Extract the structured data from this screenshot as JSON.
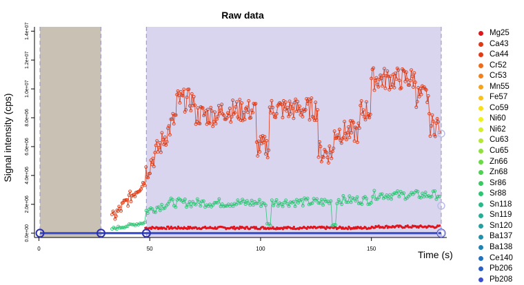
{
  "chart_data": {
    "type": "scatter",
    "title": "Raw data",
    "xlabel": "Time (s)",
    "ylabel": "Signal intensity (cps)",
    "xlim": [
      -2,
      184
    ],
    "ylim": [
      -300000,
      14300000
    ],
    "x_ticks": [
      0,
      50,
      100,
      150
    ],
    "x_tick_labels": [
      "0",
      "50",
      "100",
      "150"
    ],
    "y_ticks": [
      0,
      2000000,
      4000000,
      6000000,
      8000000,
      10000000,
      12000000,
      14000000
    ],
    "y_tick_labels": [
      "0.0e+00",
      "2.0e+06",
      "4.0e+06",
      "6.0e+06",
      "8.0e+06",
      "1.0e+07",
      "1.2e+07",
      "1.4e+07"
    ],
    "regions": [
      {
        "kind": "background",
        "from": 0.5,
        "to": 28,
        "color": "#c9c1b4"
      },
      {
        "kind": "signal",
        "from": 48.5,
        "to": 181.5,
        "color": "#d9d5ef"
      }
    ],
    "region_handles": [
      0.5,
      28,
      48.5,
      181.5
    ],
    "legend_position": "right",
    "series": [
      {
        "name": "Mg25",
        "color": "#e0151d",
        "level": 0,
        "signal": 350000
      },
      {
        "name": "Ca43",
        "color": "#dd3a15",
        "level": 0,
        "signal": 9000000
      },
      {
        "name": "Ca44",
        "color": "#e23a16",
        "level": 0,
        "signal": 0
      },
      {
        "name": "Cr52",
        "color": "#ee6b1a",
        "level": 0,
        "signal": 0
      },
      {
        "name": "Cr53",
        "color": "#f2801c",
        "level": 0,
        "signal": 0
      },
      {
        "name": "Mn55",
        "color": "#f6a21d",
        "level": 0,
        "signal": 0
      },
      {
        "name": "Fe57",
        "color": "#fac31b",
        "level": 0,
        "signal": 0
      },
      {
        "name": "Co59",
        "color": "#f7df19",
        "level": 0,
        "signal": 0
      },
      {
        "name": "Ni60",
        "color": "#eef11f",
        "level": 0,
        "signal": 0
      },
      {
        "name": "Ni62",
        "color": "#d3ee2b",
        "level": 0,
        "signal": 0
      },
      {
        "name": "Cu63",
        "color": "#b4e836",
        "level": 0,
        "signal": 0
      },
      {
        "name": "Cu65",
        "color": "#8fe03f",
        "level": 0,
        "signal": 0
      },
      {
        "name": "Zn66",
        "color": "#6ad946",
        "level": 0,
        "signal": 0
      },
      {
        "name": "Zn68",
        "color": "#4cd150",
        "level": 0,
        "signal": 0
      },
      {
        "name": "Sr86",
        "color": "#37ca61",
        "level": 0,
        "signal": 0
      },
      {
        "name": "Sr88",
        "color": "#2ec474",
        "level": 0,
        "signal": 2200000
      },
      {
        "name": "Sn118",
        "color": "#2ab986",
        "level": 0,
        "signal": 0
      },
      {
        "name": "Sn119",
        "color": "#27ad95",
        "level": 0,
        "signal": 0
      },
      {
        "name": "Sn120",
        "color": "#24a0a2",
        "level": 0,
        "signal": 0
      },
      {
        "name": "Ba137",
        "color": "#2191ab",
        "level": 0,
        "signal": 0
      },
      {
        "name": "Ba138",
        "color": "#2181b4",
        "level": 0,
        "signal": 0
      },
      {
        "name": "Ce140",
        "color": "#2470bd",
        "level": 0,
        "signal": 0
      },
      {
        "name": "Pb206",
        "color": "#2b5fc6",
        "level": 0,
        "signal": 0
      },
      {
        "name": "Pb208",
        "color": "#3a4fce",
        "level": 0,
        "signal": 0
      }
    ]
  }
}
